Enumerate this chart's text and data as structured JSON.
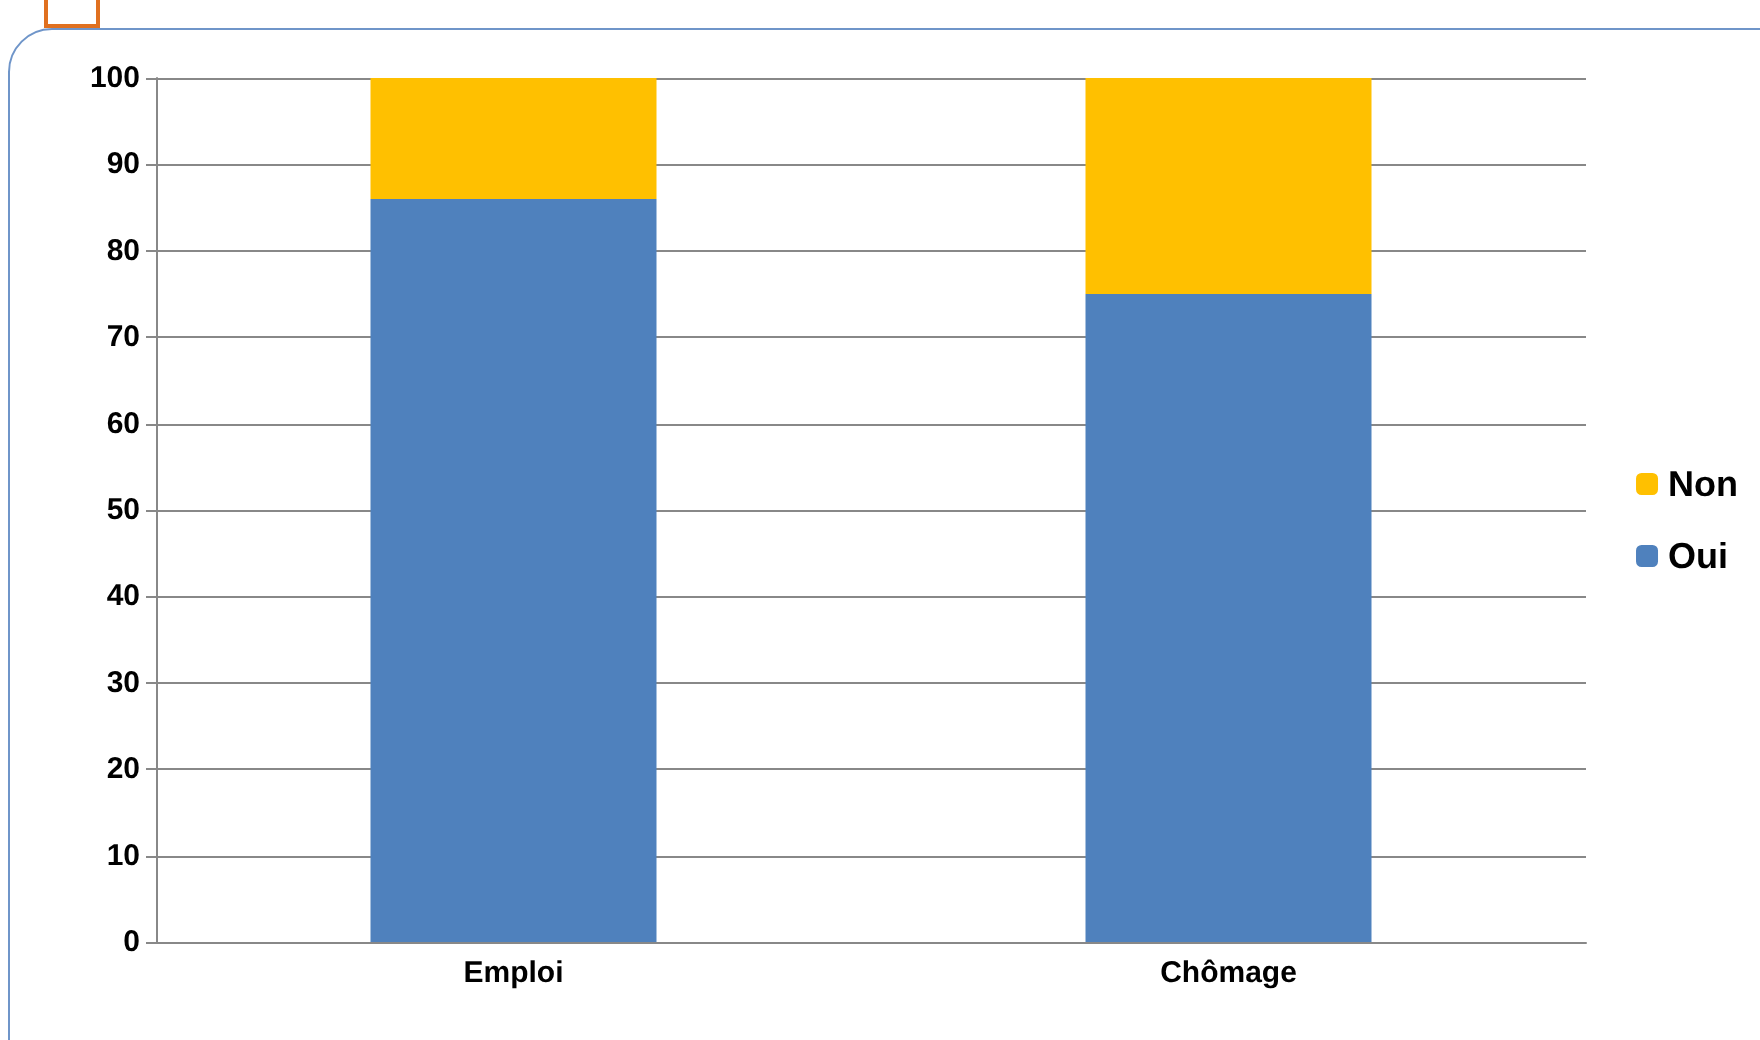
{
  "chart_data": {
    "type": "bar",
    "categories": [
      "Emploi",
      "Chômage"
    ],
    "stacked": true,
    "series": [
      {
        "name": "Oui",
        "color": "#4f81bd",
        "values": [
          86,
          75
        ]
      },
      {
        "name": "Non",
        "color": "#ffc000",
        "values": [
          14,
          25
        ]
      }
    ],
    "ylim": [
      0,
      100
    ],
    "yticks": [
      0,
      10,
      20,
      30,
      40,
      50,
      60,
      70,
      80,
      90,
      100
    ],
    "grid": "y",
    "legend": "right"
  }
}
